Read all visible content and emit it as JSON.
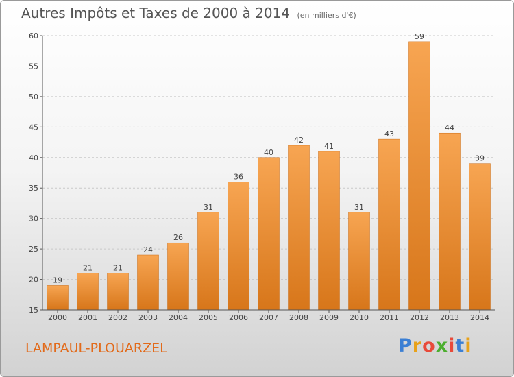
{
  "header": {
    "title": "Autres Impôts et Taxes de 2000 à 2014",
    "subtitle": "(en milliers d'€)"
  },
  "footer": {
    "commune": "LAMPAUL-PLOUARZEL",
    "brand_letters": [
      "P",
      "r",
      "o",
      "x",
      "i",
      "t",
      "i"
    ],
    "brand_colors": [
      "#3b7fd4",
      "#e8a21a",
      "#e84a3a",
      "#4cae2f",
      "#e84a3a",
      "#3b7fd4",
      "#e8a21a"
    ]
  },
  "colors": {
    "bar_top": "#f7a552",
    "bar_bottom": "#d7761a",
    "bar_edge": "#c96a12",
    "axis": "#555555",
    "grid": "#c9c9c9"
  },
  "chart_data": {
    "type": "bar",
    "categories": [
      "2000",
      "2001",
      "2002",
      "2003",
      "2004",
      "2005",
      "2006",
      "2007",
      "2008",
      "2009",
      "2010",
      "2011",
      "2012",
      "2013",
      "2014"
    ],
    "values": [
      19,
      21,
      21,
      24,
      26,
      31,
      36,
      40,
      42,
      41,
      31,
      43,
      59,
      44,
      39
    ],
    "ylim": [
      15,
      60
    ],
    "yticks": [
      15,
      20,
      25,
      30,
      35,
      40,
      45,
      50,
      55,
      60
    ],
    "grid": "horizontal dashed",
    "xlabel": "",
    "ylabel": ""
  }
}
